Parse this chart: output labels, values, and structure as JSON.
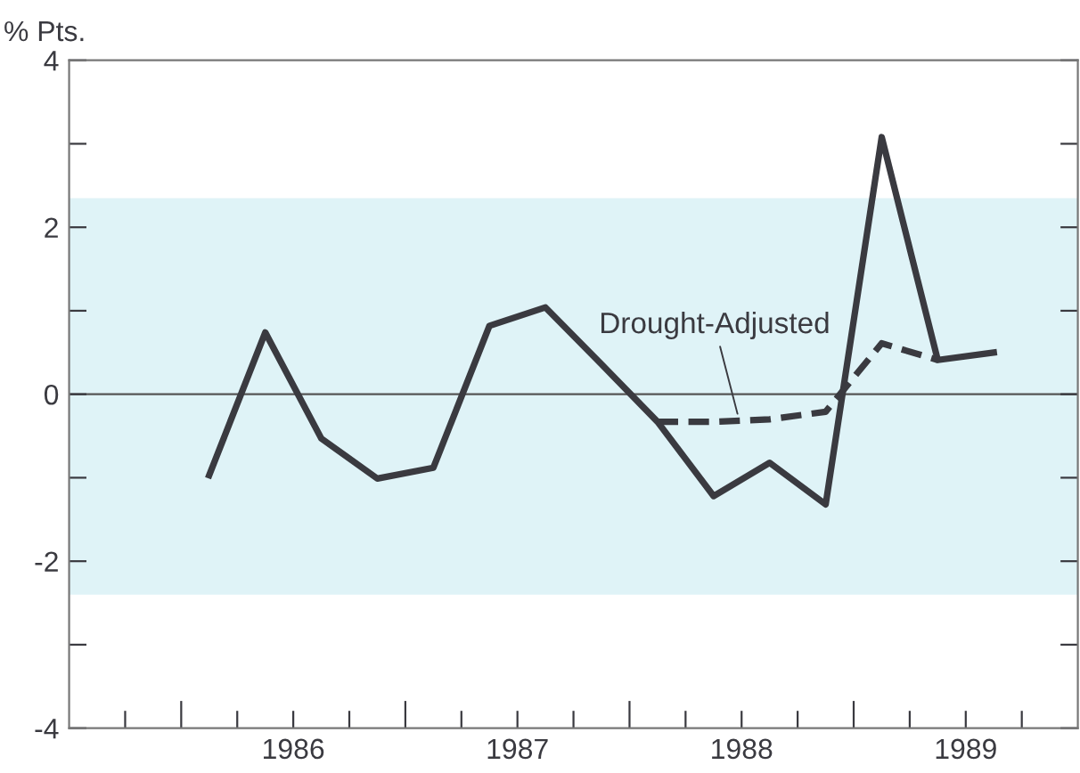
{
  "chart_data": {
    "type": "line",
    "ylabel": "% Pts.",
    "xlim": [
      1985.5,
      1990
    ],
    "xticks": [
      {
        "value": 1985.75,
        "label": null
      },
      {
        "value": 1986,
        "label": null
      },
      {
        "value": 1986.25,
        "label": null
      },
      {
        "value": 1986.5,
        "label": "1986"
      },
      {
        "value": 1986.75,
        "label": null
      },
      {
        "value": 1987,
        "label": null
      },
      {
        "value": 1987.25,
        "label": null
      },
      {
        "value": 1987.5,
        "label": "1987"
      },
      {
        "value": 1987.75,
        "label": null
      },
      {
        "value": 1988,
        "label": null
      },
      {
        "value": 1988.25,
        "label": null
      },
      {
        "value": 1988.5,
        "label": "1988"
      },
      {
        "value": 1988.75,
        "label": null
      },
      {
        "value": 1989,
        "label": null
      },
      {
        "value": 1989.25,
        "label": null
      },
      {
        "value": 1989.5,
        "label": "1989"
      },
      {
        "value": 1989.75,
        "label": null
      }
    ],
    "ylim": [
      -4,
      4
    ],
    "yticks": [
      -4,
      {
        "value": -3,
        "label": null
      },
      -2,
      {
        "value": -1,
        "label": null
      },
      0,
      {
        "value": 1,
        "label": null
      },
      2,
      {
        "value": 3,
        "label": null
      },
      4
    ],
    "grid": false,
    "marker": "none",
    "series": [
      {
        "color": "#3a3a40",
        "line_style": "solid",
        "x": [
          1986.125,
          1986.375,
          1986.625,
          1986.875,
          1987.125,
          1987.375,
          1987.625,
          1987.875,
          1988.125,
          1988.375,
          1988.625,
          1988.875,
          1989.125,
          1989.375,
          1989.625
        ],
        "values": [
          -0.97,
          0.74,
          -0.53,
          -1.01,
          -0.88,
          0.82,
          1.04,
          0.36,
          -0.33,
          -1.22,
          -0.82,
          -1.32,
          3.08,
          0.41,
          0.5
        ]
      },
      {
        "color": "#3a3a40",
        "line_style": "dashed",
        "x": [
          1988.125,
          1988.375,
          1988.625,
          1988.875,
          1989.125,
          1989.375
        ],
        "values": [
          -0.33,
          -0.33,
          -0.3,
          -0.21,
          0.61,
          0.41
        ]
      }
    ],
    "ref_lines": [
      {
        "axis": "y",
        "value": 0,
        "color": "#555555",
        "line_style": "solid"
      }
    ],
    "bands": [
      {
        "axis": "y",
        "from": -2.4,
        "to": 2.35,
        "color": "#dff3f7"
      }
    ],
    "annotations": [
      {
        "text": "Drought-Adjusted",
        "x": 1988.49,
        "y": -0.32
      }
    ]
  }
}
